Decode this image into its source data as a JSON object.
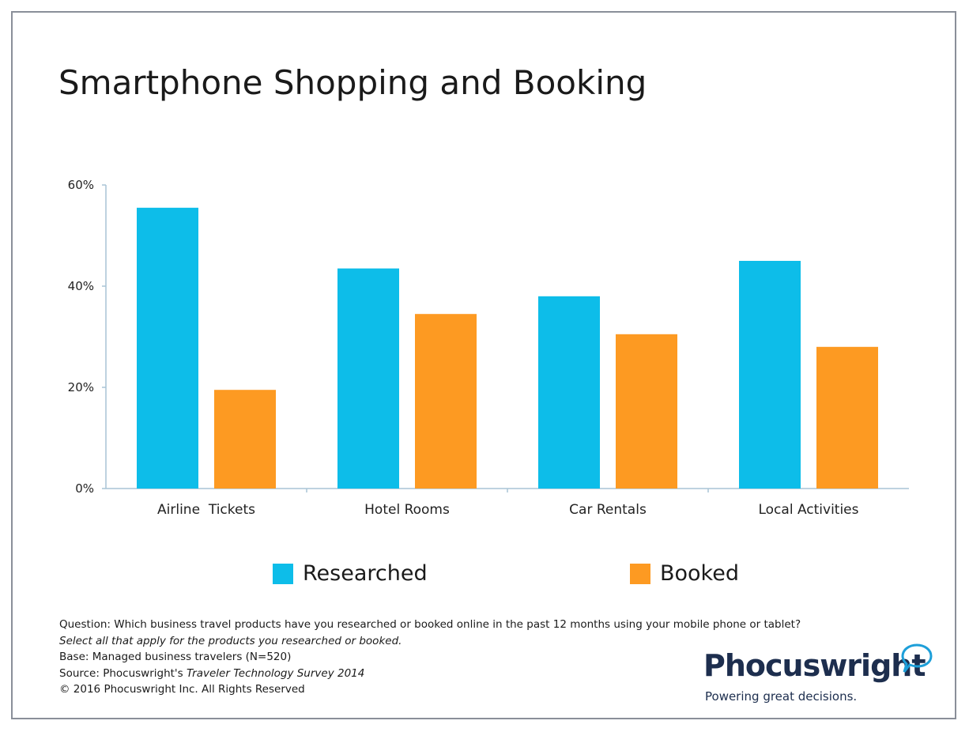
{
  "title": "Smartphone Shopping and Booking",
  "chart_data": {
    "type": "bar",
    "title": "Smartphone Shopping and Booking",
    "categories": [
      "Airline  Tickets",
      "Hotel Rooms",
      "Car Rentals",
      "Local Activities"
    ],
    "series": [
      {
        "name": "Researched",
        "color": "#0dbde9",
        "values": [
          55.5,
          43.5,
          38,
          45
        ]
      },
      {
        "name": "Booked",
        "color": "#fd9a22",
        "values": [
          19.5,
          34.5,
          30.5,
          28
        ]
      }
    ],
    "ylim": [
      0,
      60
    ],
    "yticks": [
      0,
      20,
      40,
      60
    ],
    "ytick_labels": [
      "0%",
      "20%",
      "40%",
      "60%"
    ],
    "grid": false,
    "legend_position": "bottom"
  },
  "notes": {
    "question": "Question: Which business travel products have you researched or booked online in the past 12 months using your mobile phone or tablet?",
    "instruction": "Select all that apply for the products you researched or booked.",
    "base": "Base: Managed business travelers (N=520)",
    "source_prefix": "Source: Phocuswright's ",
    "source_title": "Traveler Technology Survey 2014",
    "copyright": "© 2016 Phocuswright Inc. All Rights Reserved"
  },
  "logo": {
    "wordmark": "Phocuswright",
    "tagline": "Powering great decisions.",
    "color": "#1d2e4e",
    "accent": "#1d9fd9"
  }
}
